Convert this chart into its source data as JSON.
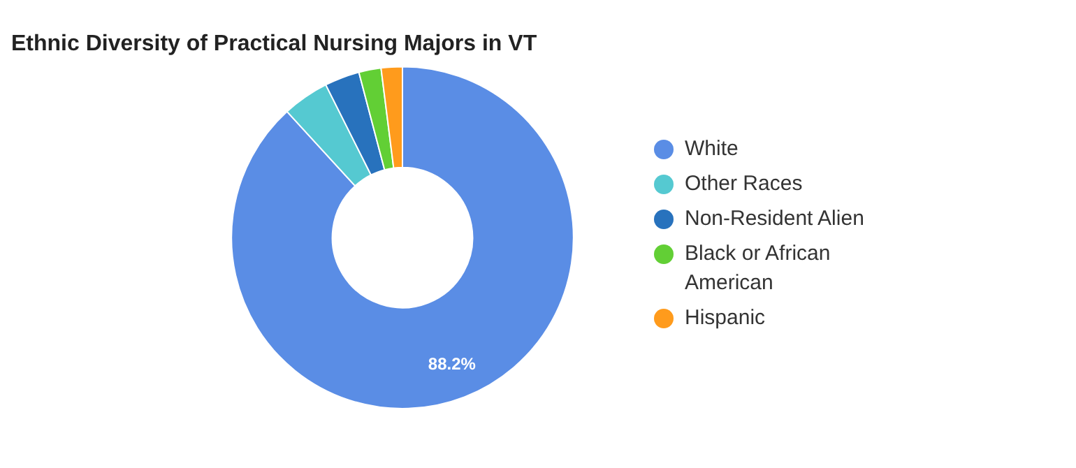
{
  "chart_data": {
    "type": "donut",
    "title": "Ethnic Diversity of Practical Nursing Majors in VT",
    "categories": [
      "White",
      "Other Races",
      "Non-Resident Alien",
      "Black or African American",
      "Hispanic"
    ],
    "values": [
      88.2,
      4.4,
      3.3,
      2.1,
      2.0
    ],
    "colors": [
      "#5a8de5",
      "#55c9d1",
      "#2872bd",
      "#62cf35",
      "#ff9b1c"
    ],
    "value_labels": [
      "88.2%",
      null,
      null,
      null,
      null
    ],
    "legend": "right"
  }
}
